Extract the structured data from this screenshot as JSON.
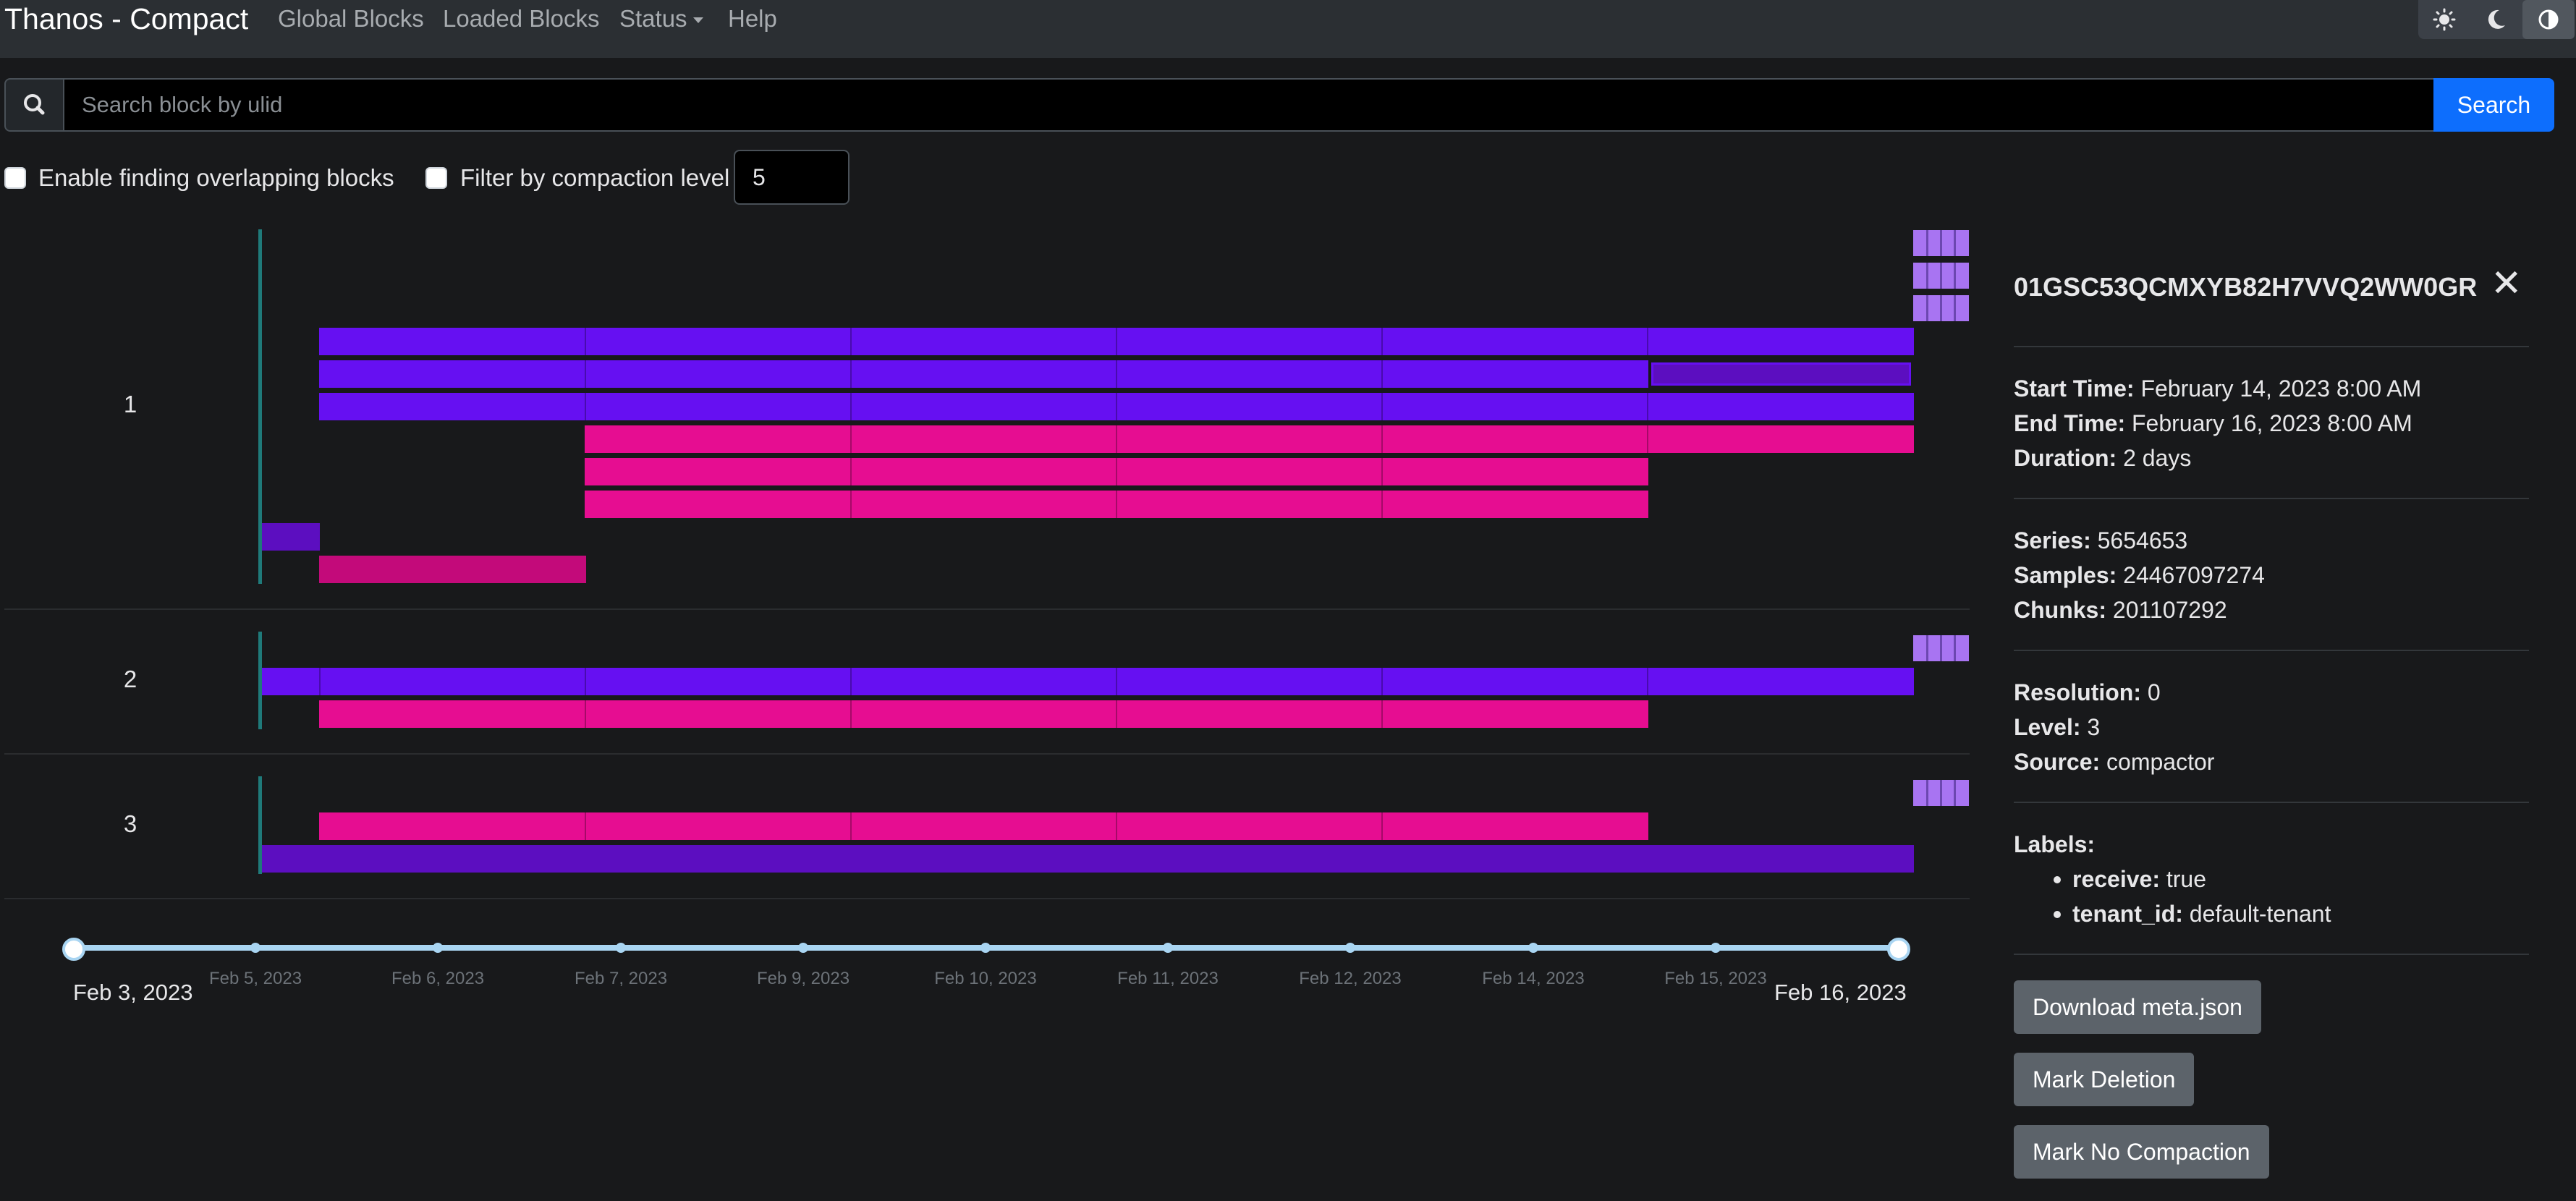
{
  "navbar": {
    "brand": "Thanos - Compact",
    "links": [
      "Global Blocks",
      "Loaded Blocks",
      "Status",
      "Help"
    ],
    "theme_buttons": [
      "sun-icon",
      "moon-icon",
      "contrast-icon"
    ]
  },
  "search": {
    "icon": "search-icon",
    "placeholder": "Search block by ulid",
    "value": "",
    "button_label": "Search"
  },
  "filters": {
    "overlap_label": "Enable finding overlapping blocks",
    "overlap_checked": false,
    "level_label": "Filter by compaction level",
    "level_checked": false,
    "level_value": "5"
  },
  "timeline": {
    "rows": [
      {
        "label": "1"
      },
      {
        "label": "2"
      },
      {
        "label": "3"
      }
    ],
    "range_start": "Feb 3, 2023",
    "range_end": "Feb 16, 2023",
    "ticks": [
      "Feb 5, 2023",
      "Feb 6, 2023",
      "Feb 7, 2023",
      "Feb 9, 2023",
      "Feb 10, 2023",
      "Feb 11, 2023",
      "Feb 12, 2023",
      "Feb 14, 2023",
      "Feb 15, 2023"
    ],
    "colors": {
      "level_a": "#6610f2",
      "level_b": "#e60d91",
      "mini": "#a874f2",
      "axis": "#1f7a7a",
      "slider": "#a9d5f2"
    }
  },
  "details": {
    "block_id": "01GSC53QCMXYB82H7VVQ2WW0GR",
    "close_icon": "close-icon",
    "start_time_label": "Start Time:",
    "start_time": "February 14, 2023 8:00 AM",
    "end_time_label": "End Time:",
    "end_time": "February 16, 2023 8:00 AM",
    "duration_label": "Duration:",
    "duration": "2 days",
    "series_label": "Series:",
    "series": "5654653",
    "samples_label": "Samples:",
    "samples": "24467097274",
    "chunks_label": "Chunks:",
    "chunks": "201107292",
    "resolution_label": "Resolution:",
    "resolution": "0",
    "level_label": "Level:",
    "level": "3",
    "source_label": "Source:",
    "source": "compactor",
    "labels_title": "Labels:",
    "labels": [
      {
        "key": "receive:",
        "value": "true"
      },
      {
        "key": "tenant_id:",
        "value": "default-tenant"
      }
    ],
    "buttons": {
      "download": "Download meta.json",
      "mark_deletion": "Mark Deletion",
      "mark_no_compaction": "Mark No Compaction"
    }
  }
}
